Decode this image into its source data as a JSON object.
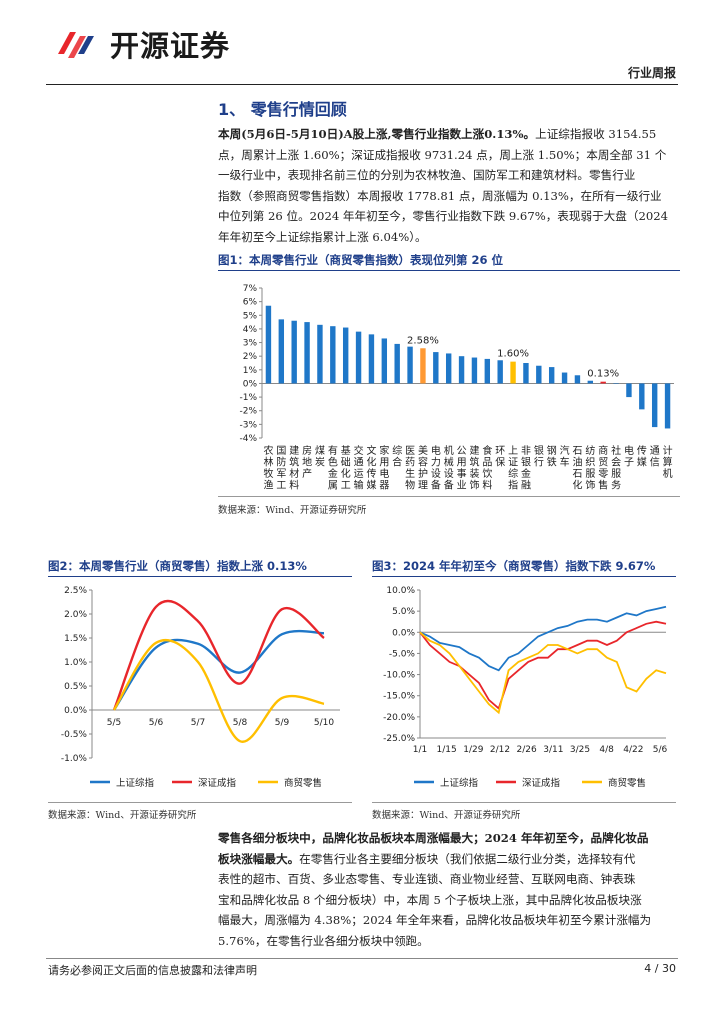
{
  "header": {
    "brand": "开源证券",
    "report_type": "行业周报"
  },
  "section": {
    "title": "1、 零售行情回顾"
  },
  "para1": {
    "lead": "本周(5月6日-5月10日)A股上涨,零售行业指数上涨0.13%。",
    "lines": [
      "点，周累计上涨 1.60%；深证成指报收 9731.24 点，周上涨 1.50%；本周全部 31 个",
      "一级行业中，表现排名前三位的分别为农林牧渔、国防军工和建筑材料。零售行业",
      "指数（参照商贸零售指数）本周报收 1778.81 点，周涨幅为 0.13%，在所有一级行业",
      "中位列第 26 位。2024 年年初至今，零售行业指数下跌 9.67%，表现弱于大盘（2024",
      "年年初至今上证综指累计上涨 6.04%）。"
    ],
    "lead_tail": "上证综指报收 3154.55"
  },
  "fig1": {
    "title": "图1：本周零售行业（商贸零售指数）表现位列第 26 位",
    "source": "数据来源：Wind、开源证券研究所"
  },
  "fig2": {
    "title": "图2：本周零售行业（商贸零售）指数上涨 0.13%",
    "source": "数据来源：Wind、开源证券研究所"
  },
  "fig3": {
    "title": "图3：2024 年年初至今（商贸零售）指数下跌 9.67%",
    "source": "数据来源：Wind、开源证券研究所"
  },
  "para2": {
    "lead": "零售各细分板块中，品牌化妆品板块本周涨幅最大；2024 年年初至今，品牌化妆品",
    "lead2": "板块涨幅最大。",
    "lines": [
      "表性的超市、百货、多业态零售、专业连锁、商业物业经营、互联网电商、钟表珠",
      "宝和品牌化妆品 8 个细分板块）中，本周 5 个子板块上涨，其中品牌化妆品板块涨",
      "幅最大，周涨幅为 4.38%；2024 年全年来看，品牌化妆品板块年初至今累计涨幅为",
      "5.76%，在零售行业各细分板块中领跑。"
    ],
    "lead2_tail": "在零售行业各主要细分板块（我们依据二级行业分类，选择较有代"
  },
  "footer": {
    "disclaimer": "请务必参阅正文后面的信息披露和法律声明",
    "page": "4 / 30"
  },
  "colors": {
    "blue": "#1f77c8",
    "orange": "#ff9933",
    "red": "#e8262b",
    "yellow": "#ffbf00",
    "title_blue": "#1f3f8a"
  },
  "chart_data": [
    {
      "type": "bar",
      "categories": [
        "农林牧渔",
        "国防军工",
        "建筑材料",
        "房地产",
        "煤炭",
        "有色金属",
        "基础化工",
        "交通运输",
        "文化传媒",
        "家用电器",
        "综合",
        "医药生物",
        "美容护理",
        "电力设备",
        "机械设备",
        "公用事业",
        "建筑装饰",
        "食品饮料",
        "环保",
        "上证综指",
        "非银金融",
        "银行",
        "钢铁",
        "汽车",
        "石油石化",
        "纺织服饰",
        "商贸零售",
        "社会服务",
        "电子",
        "传媒",
        "通信",
        "计算机"
      ],
      "values": [
        5.7,
        4.7,
        4.6,
        4.5,
        4.3,
        4.2,
        4.1,
        3.8,
        3.6,
        3.3,
        2.9,
        2.7,
        2.58,
        2.3,
        2.2,
        2.0,
        1.9,
        1.8,
        1.7,
        1.6,
        1.5,
        1.3,
        1.2,
        0.8,
        0.6,
        0.2,
        0.13,
        0.0,
        -1.0,
        -1.9,
        -3.2,
        -3.3
      ],
      "highlight": {
        "美容护理": "orange",
        "上证综指": "yellow",
        "商贸零售": "red"
      },
      "data_labels": [
        {
          "category": "美容护理",
          "text": "2.58%"
        },
        {
          "category": "上证综指",
          "text": "1.60%"
        },
        {
          "category": "商贸零售",
          "text": "0.13%"
        }
      ],
      "ylim": [
        -4,
        7
      ],
      "yticks": [
        "7%",
        "6%",
        "5%",
        "4%",
        "3%",
        "2%",
        "1%",
        "0%",
        "-1%",
        "-2%",
        "-3%",
        "-4%"
      ]
    },
    {
      "type": "line",
      "x": [
        "5/5",
        "5/6",
        "5/7",
        "5/8",
        "5/9",
        "5/10"
      ],
      "series": [
        {
          "name": "上证综指",
          "values": [
            0.0,
            1.3,
            1.38,
            0.78,
            1.58,
            1.6
          ]
        },
        {
          "name": "深证成指",
          "values": [
            0.0,
            2.15,
            1.85,
            0.55,
            2.1,
            1.5
          ]
        },
        {
          "name": "商贸零售",
          "values": [
            0.0,
            1.4,
            1.0,
            -0.65,
            0.25,
            0.13
          ]
        }
      ],
      "ylim": [
        -1.0,
        2.5
      ],
      "yticks": [
        "2.5%",
        "2.0%",
        "1.5%",
        "1.0%",
        "0.5%",
        "0.0%",
        "-0.5%",
        "-1.0%"
      ]
    },
    {
      "type": "line",
      "x_ticks": [
        "1/1",
        "1/15",
        "1/29",
        "2/12",
        "2/26",
        "3/11",
        "3/25",
        "4/8",
        "4/22",
        "5/6"
      ],
      "series": [
        {
          "name": "上证综指",
          "values": [
            0,
            -1,
            -2.5,
            -3,
            -3.5,
            -5,
            -6,
            -8,
            -9,
            -6,
            -5,
            -3,
            -1,
            0,
            1,
            1.5,
            2.5,
            3,
            3,
            2.5,
            3.5,
            4.5,
            4,
            5,
            5.5,
            6.04
          ]
        },
        {
          "name": "深证成指",
          "values": [
            0,
            -3,
            -5,
            -7,
            -8,
            -10,
            -12,
            -16,
            -18,
            -11,
            -9,
            -7,
            -6,
            -6,
            -4,
            -4,
            -3,
            -2,
            -2,
            -3,
            -2,
            0,
            1,
            2,
            2.5,
            2
          ]
        },
        {
          "name": "商贸零售",
          "values": [
            0,
            -2,
            -3,
            -5,
            -8,
            -11,
            -14,
            -17,
            -19,
            -9,
            -7,
            -6,
            -5,
            -3,
            -3,
            -4,
            -5,
            -4,
            -4,
            -6,
            -7,
            -13,
            -14,
            -11,
            -9,
            -9.67
          ]
        }
      ],
      "ylim": [
        -25,
        10
      ],
      "yticks": [
        "10.0%",
        "5.0%",
        "0.0%",
        "-5.0%",
        "-10.0%",
        "-15.0%",
        "-20.0%",
        "-25.0%"
      ]
    }
  ]
}
